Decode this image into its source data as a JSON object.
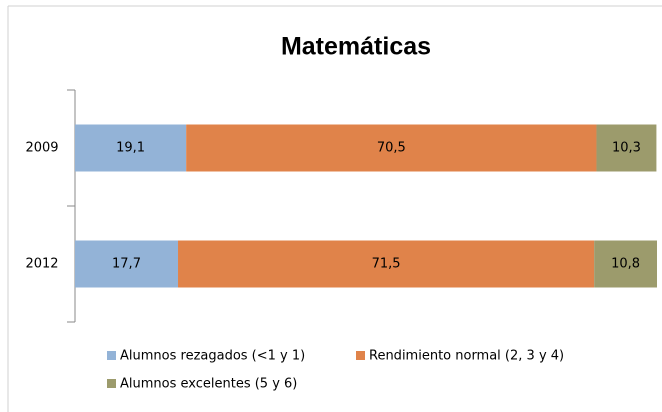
{
  "chart_data": {
    "type": "stacked_bar",
    "orientation": "horizontal",
    "title": "Matemáticas",
    "categories": [
      "2009",
      "2012"
    ],
    "series": [
      {
        "name": "Alumnos rezagados (<1 y 1)",
        "color": "#93b3d7",
        "values": [
          19.1,
          17.7
        ],
        "value_labels": [
          "19,1",
          "17,7"
        ]
      },
      {
        "name": "Rendimiento normal (2, 3 y 4)",
        "color": "#e0834a",
        "values": [
          70.5,
          71.5
        ],
        "value_labels": [
          "70,5",
          "71,5"
        ]
      },
      {
        "name": "Alumnos excelentes (5 y 6)",
        "color": "#9c9b6c",
        "values": [
          10.3,
          10.8
        ],
        "value_labels": [
          "10,3",
          "10,8"
        ]
      }
    ],
    "value_label_color": "#ffff00",
    "legend": "bottom"
  }
}
